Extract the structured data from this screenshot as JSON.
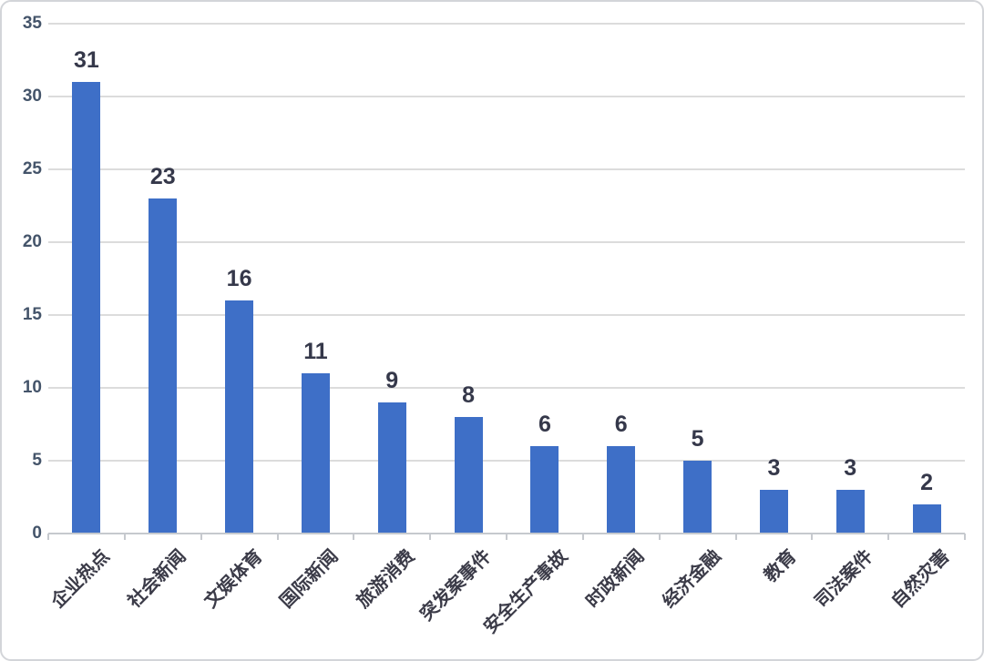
{
  "chart_data": {
    "type": "bar",
    "title": "",
    "xlabel": "",
    "ylabel": "",
    "categories": [
      "企业热点",
      "社会新闻",
      "文娱体育",
      "国际新闻",
      "旅游消费",
      "突发案事件",
      "安全生产事故",
      "时政新闻",
      "经济金融",
      "教育",
      "司法案件",
      "自然灾害"
    ],
    "values": [
      31,
      23,
      16,
      11,
      9,
      8,
      6,
      6,
      5,
      3,
      3,
      2
    ],
    "value_labels": [
      "31",
      "23",
      "16",
      "11",
      "9",
      "8",
      "6",
      "6",
      "5",
      "3",
      "3",
      "2"
    ],
    "ylim": [
      0,
      35
    ],
    "yticks": [
      0,
      5,
      10,
      15,
      20,
      25,
      30,
      35
    ],
    "grid": true,
    "legend_position": "none",
    "colors": {
      "bar": "#3e6fc7",
      "gridline": "#dcdcdc",
      "axis_line": "#c6c9ce",
      "value_label": "#35384a",
      "ytick_label": "#44546a",
      "xtick_label": "#3b3b48",
      "background": "#ffffff",
      "page_border": "#d3d5d9"
    }
  }
}
